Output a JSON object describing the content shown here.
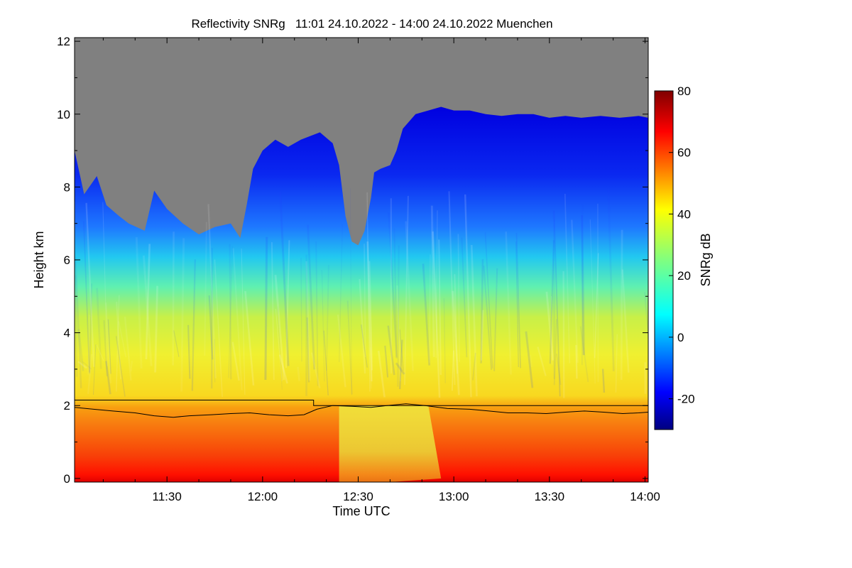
{
  "chart_data": {
    "type": "heatmap",
    "title": "Reflectivity SNRg   11:01 24.10.2022 - 14:00 24.10.2022 Muenchen",
    "xlabel": "Time UTC",
    "ylabel": "Height km",
    "colorbar_label": "SNRg dB",
    "x_range_minutes": [
      661,
      841
    ],
    "x_ticks": [
      {
        "label": "11:30",
        "minutes": 690
      },
      {
        "label": "12:00",
        "minutes": 720
      },
      {
        "label": "12:30",
        "minutes": 750
      },
      {
        "label": "13:00",
        "minutes": 780
      },
      {
        "label": "13:30",
        "minutes": 810
      },
      {
        "label": "14:00",
        "minutes": 840
      }
    ],
    "y_range_km": [
      -0.1,
      12.1
    ],
    "y_ticks": [
      {
        "label": "0",
        "value": 0
      },
      {
        "label": "2",
        "value": 2
      },
      {
        "label": "4",
        "value": 4
      },
      {
        "label": "6",
        "value": 6
      },
      {
        "label": "8",
        "value": 8
      },
      {
        "label": "10",
        "value": 10
      },
      {
        "label": "12",
        "value": 12
      }
    ],
    "colorbar_range": [
      -30,
      80
    ],
    "colorbar_ticks": [
      {
        "label": "-20",
        "value": -20
      },
      {
        "label": "0",
        "value": 0
      },
      {
        "label": "20",
        "value": 20
      },
      {
        "label": "40",
        "value": 40
      },
      {
        "label": "60",
        "value": 60
      },
      {
        "label": "80",
        "value": 80
      }
    ],
    "no_data_color": "#808080",
    "cloud_top_km": [
      [
        661,
        9.0
      ],
      [
        664,
        7.8
      ],
      [
        668,
        8.3
      ],
      [
        671,
        7.5
      ],
      [
        675,
        7.2
      ],
      [
        678,
        7.0
      ],
      [
        683,
        6.8
      ],
      [
        686,
        7.9
      ],
      [
        690,
        7.4
      ],
      [
        695,
        7.0
      ],
      [
        700,
        6.7
      ],
      [
        705,
        6.9
      ],
      [
        710,
        7.0
      ],
      [
        713,
        6.6
      ],
      [
        715,
        7.5
      ],
      [
        717,
        8.5
      ],
      [
        720,
        9.0
      ],
      [
        724,
        9.3
      ],
      [
        728,
        9.1
      ],
      [
        732,
        9.3
      ],
      [
        735,
        9.4
      ],
      [
        738,
        9.5
      ],
      [
        742,
        9.2
      ],
      [
        744,
        8.6
      ],
      [
        746,
        7.2
      ],
      [
        748,
        6.5
      ],
      [
        750,
        6.4
      ],
      [
        752,
        6.8
      ],
      [
        754,
        7.7
      ],
      [
        755,
        8.4
      ],
      [
        757,
        8.5
      ],
      [
        760,
        8.6
      ],
      [
        762,
        9.0
      ],
      [
        764,
        9.6
      ],
      [
        768,
        10.0
      ],
      [
        772,
        10.1
      ],
      [
        776,
        10.2
      ],
      [
        780,
        10.1
      ],
      [
        785,
        10.1
      ],
      [
        790,
        10.0
      ],
      [
        795,
        9.95
      ],
      [
        800,
        10.0
      ],
      [
        805,
        10.0
      ],
      [
        810,
        9.9
      ],
      [
        815,
        9.95
      ],
      [
        820,
        9.9
      ],
      [
        826,
        9.95
      ],
      [
        832,
        9.9
      ],
      [
        838,
        9.95
      ],
      [
        841,
        9.9
      ]
    ],
    "max_level_km": [
      [
        661,
        2.15
      ],
      [
        736,
        2.15
      ],
      [
        736,
        2.0
      ],
      [
        775,
        2.0
      ],
      [
        775,
        2.0
      ],
      [
        841,
        2.0
      ]
    ],
    "mixing_height_km": [
      [
        661,
        1.95
      ],
      [
        667,
        1.9
      ],
      [
        673,
        1.85
      ],
      [
        680,
        1.8
      ],
      [
        686,
        1.72
      ],
      [
        692,
        1.68
      ],
      [
        697,
        1.72
      ],
      [
        704,
        1.75
      ],
      [
        710,
        1.78
      ],
      [
        716,
        1.8
      ],
      [
        722,
        1.75
      ],
      [
        728,
        1.72
      ],
      [
        733,
        1.75
      ],
      [
        737,
        1.9
      ],
      [
        742,
        2.0
      ],
      [
        748,
        1.98
      ],
      [
        754,
        1.95
      ],
      [
        759,
        2.0
      ],
      [
        765,
        2.05
      ],
      [
        771,
        2.0
      ],
      [
        778,
        1.92
      ],
      [
        785,
        1.9
      ],
      [
        791,
        1.85
      ],
      [
        797,
        1.8
      ],
      [
        803,
        1.8
      ],
      [
        809,
        1.78
      ],
      [
        815,
        1.82
      ],
      [
        821,
        1.85
      ],
      [
        827,
        1.82
      ],
      [
        833,
        1.78
      ],
      [
        838,
        1.8
      ],
      [
        841,
        1.82
      ]
    ]
  }
}
